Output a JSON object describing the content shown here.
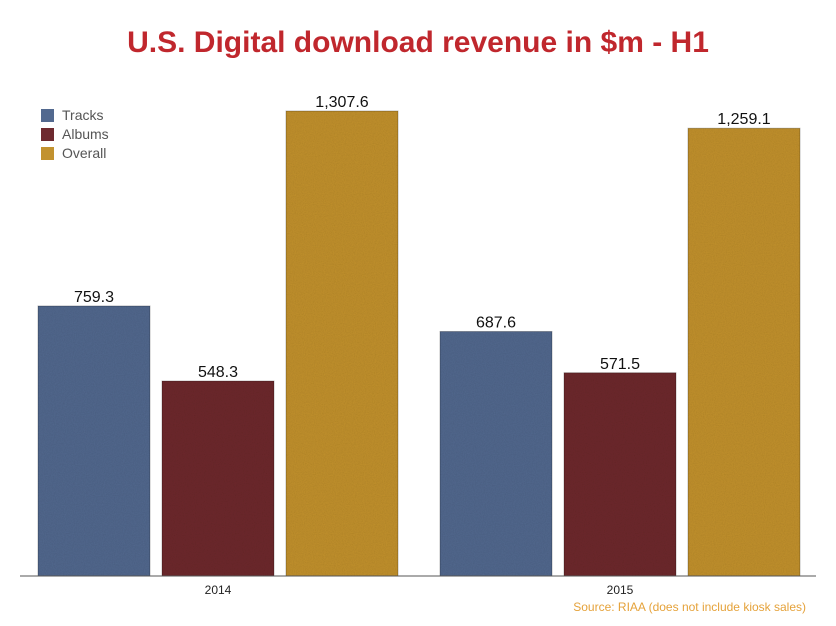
{
  "chart_data": {
    "type": "bar",
    "title": "U.S. Digital download revenue in $m - H1",
    "categories": [
      "2014",
      "2015"
    ],
    "series": [
      {
        "name": "Tracks",
        "values": [
          759.3,
          687.6
        ],
        "labels": [
          "759.3",
          "687.6"
        ],
        "color": "#52698f"
      },
      {
        "name": "Albums",
        "values": [
          548.3,
          571.5
        ],
        "labels": [
          "548.3",
          "571.5"
        ],
        "color": "#6e2a2f"
      },
      {
        "name": "Overall",
        "values": [
          1307.6,
          1259.1
        ],
        "labels": [
          "1,307.6",
          "1,259.1"
        ],
        "color": "#c2922f"
      }
    ],
    "xlabel": "",
    "ylabel": "",
    "ylim": [
      0,
      1307.6
    ],
    "grid": false,
    "legend_position": "top-left",
    "source": "Source: RIAA (does not include kiosk sales)",
    "title_color": "#c0272d",
    "source_color": "#e5a23a"
  }
}
